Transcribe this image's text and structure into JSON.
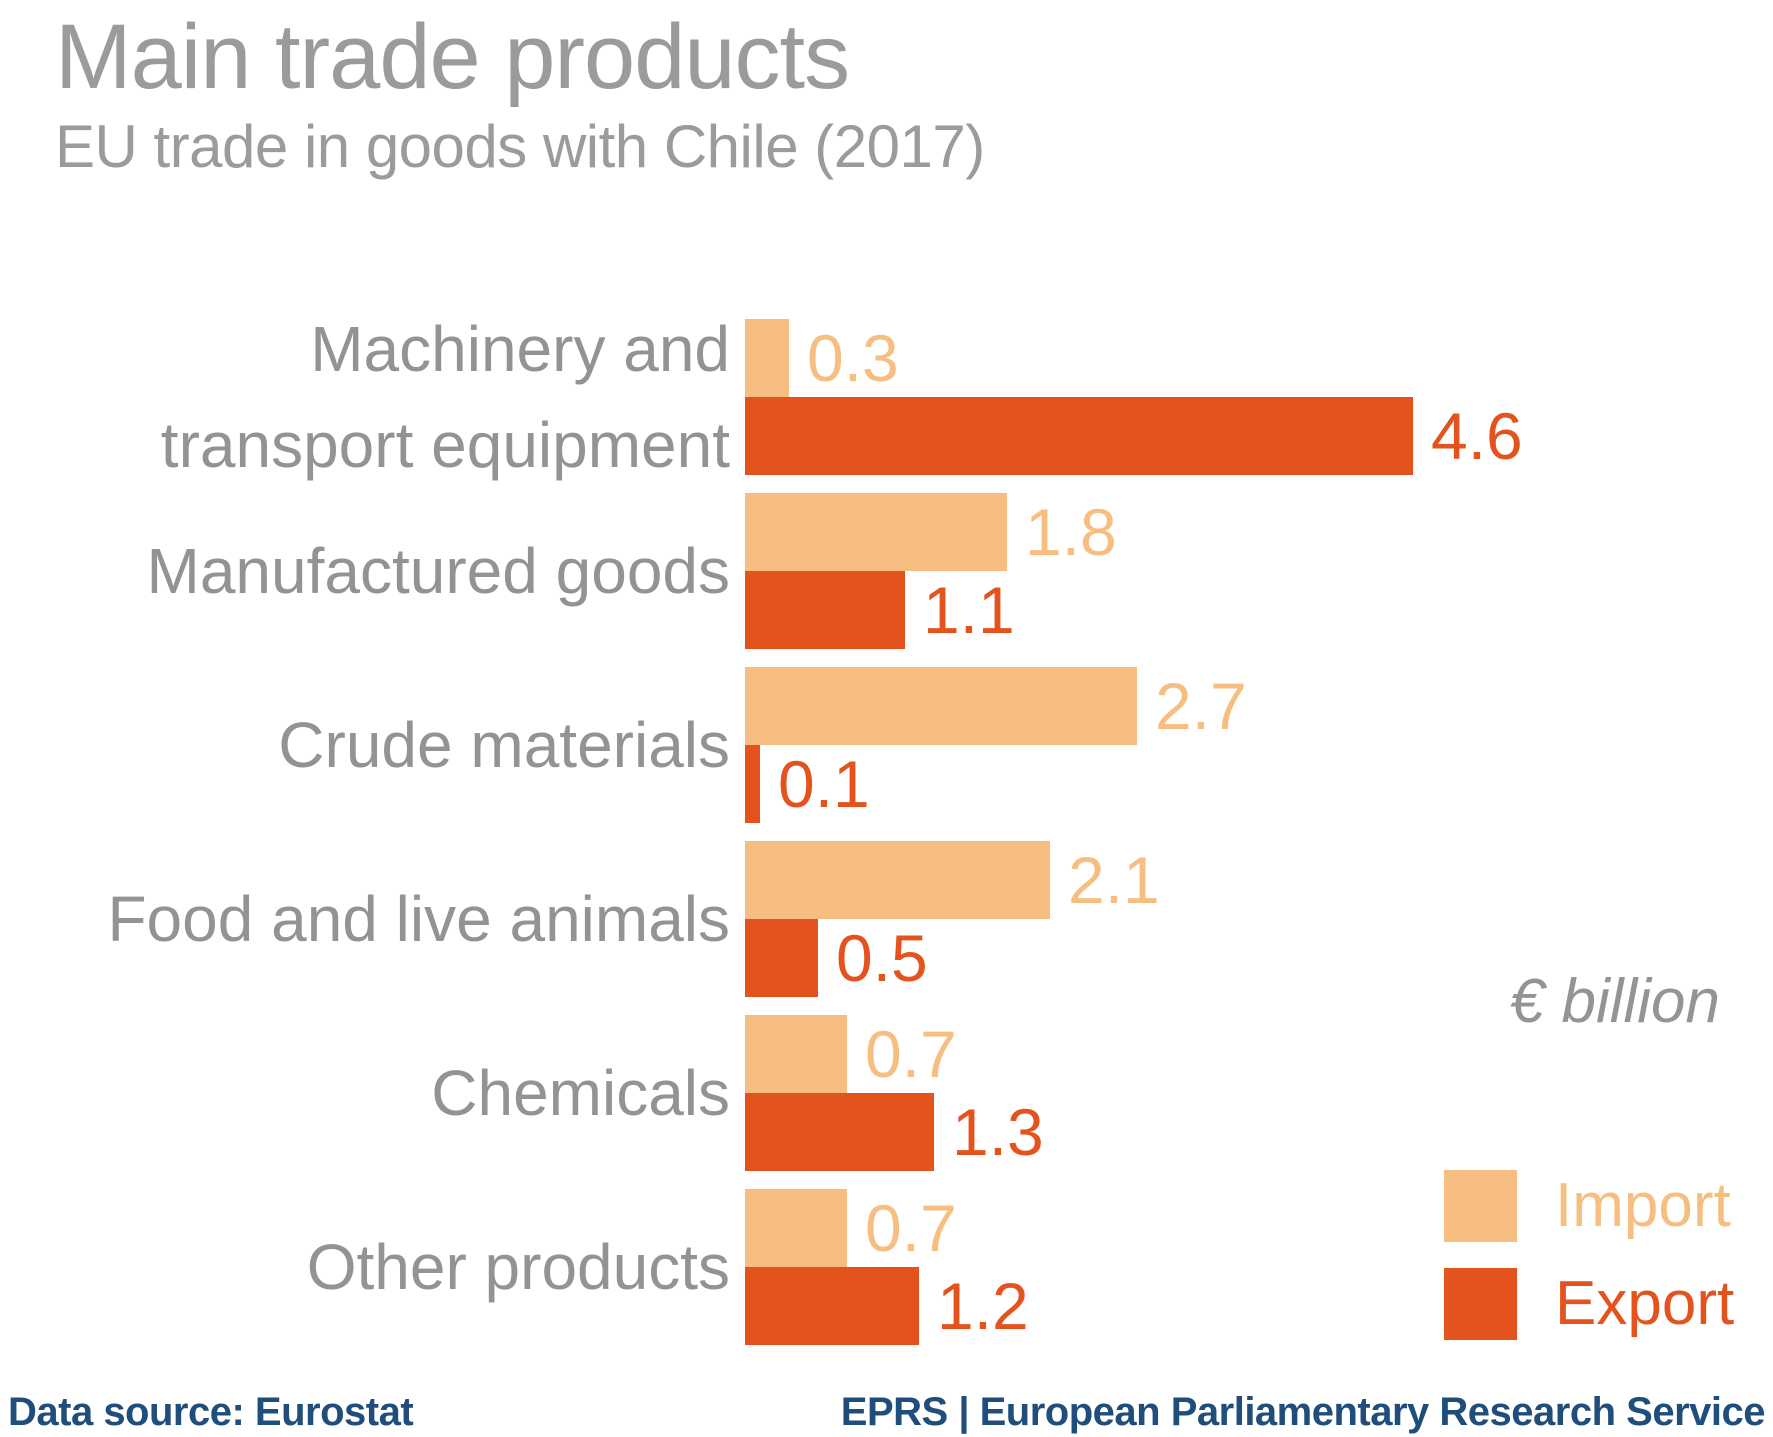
{
  "chart_data": {
    "type": "bar",
    "orientation": "horizontal",
    "title": "Main trade products",
    "subtitle": "EU trade in goods with Chile (2017)",
    "unit_label": "€ billion",
    "categories": [
      "Machinery and transport equipment",
      "Manufactured goods",
      "Crude materials",
      "Food and live animals",
      "Chemicals",
      "Other products"
    ],
    "category_lines": [
      [
        "Machinery and",
        "transport equipment"
      ],
      [
        "Manufactured goods"
      ],
      [
        "Crude materials"
      ],
      [
        "Food and live animals"
      ],
      [
        "Chemicals"
      ],
      [
        "Other products"
      ]
    ],
    "series": [
      {
        "name": "Import",
        "color": "#F7BE81",
        "values": [
          0.3,
          1.8,
          2.7,
          2.1,
          0.7,
          0.7
        ]
      },
      {
        "name": "Export",
        "color": "#E4521E",
        "values": [
          4.6,
          1.1,
          0.1,
          0.5,
          1.3,
          1.2
        ]
      }
    ],
    "xlim": [
      0,
      5
    ],
    "value_labels": true,
    "grid": false,
    "legend_position": "bottom-right"
  },
  "colors": {
    "title_gray": "#9B9B9B",
    "category_gray": "#939393",
    "footer_blue": "#1F4E7C"
  },
  "footer": {
    "source": "Data source: Eurostat",
    "credit": "EPRS | European Parliamentary Research Service"
  }
}
